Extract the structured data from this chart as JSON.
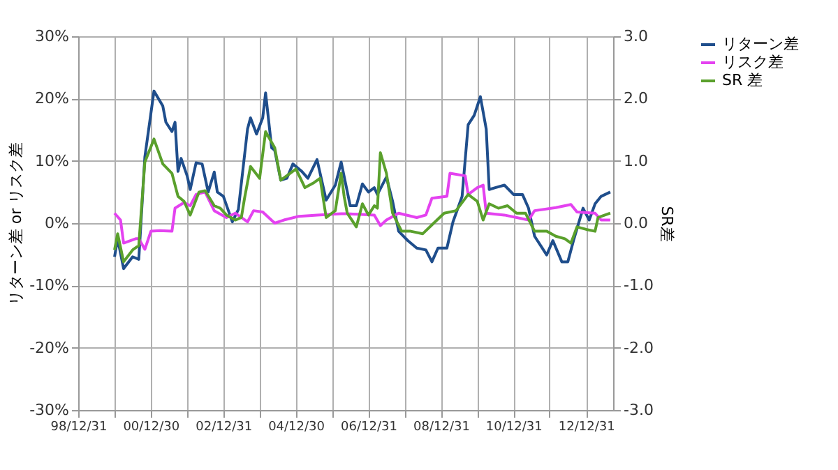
{
  "chart_data": {
    "type": "line",
    "ylabel": "リターン差 or リスク差",
    "y2label": "SR差",
    "xlim": [
      "1998-12-31",
      "2013-09-30"
    ],
    "xticks": [
      {
        "value": "1998-12-31",
        "label": "98/12/31"
      },
      {
        "value": "1999-12-31",
        "label": null
      },
      {
        "value": "2000-12-30",
        "label": "00/12/30"
      },
      {
        "value": "2001-12-31",
        "label": null
      },
      {
        "value": "2002-12-31",
        "label": "02/12/31"
      },
      {
        "value": "2003-12-31",
        "label": null
      },
      {
        "value": "2004-12-30",
        "label": "04/12/30"
      },
      {
        "value": "2005-12-30",
        "label": null
      },
      {
        "value": "2006-12-31",
        "label": "06/12/31"
      },
      {
        "value": "2007-12-31",
        "label": null
      },
      {
        "value": "2008-12-31",
        "label": "08/12/31"
      },
      {
        "value": "2009-12-31",
        "label": null
      },
      {
        "value": "2010-12-31",
        "label": "10/12/31"
      },
      {
        "value": "2011-12-30",
        "label": null
      },
      {
        "value": "2012-12-31",
        "label": "12/12/31"
      }
    ],
    "ylim": [
      -30,
      30
    ],
    "yticks": [
      {
        "value": -30,
        "label": "-30%"
      },
      {
        "value": -20,
        "label": "-20%"
      },
      {
        "value": -10,
        "label": "-10%"
      },
      {
        "value": 0,
        "label": "0%"
      },
      {
        "value": 10,
        "label": "10%"
      },
      {
        "value": 20,
        "label": "20%"
      },
      {
        "value": 30,
        "label": "30%"
      }
    ],
    "y2lim": [
      -3,
      3
    ],
    "y2ticks": [
      {
        "value": -3,
        "label": "-3.0"
      },
      {
        "value": -2,
        "label": "-2.0"
      },
      {
        "value": -1,
        "label": "-1.0"
      },
      {
        "value": 0,
        "label": "0.0"
      },
      {
        "value": 1,
        "label": "1.0"
      },
      {
        "value": 2,
        "label": "2.0"
      },
      {
        "value": 3,
        "label": "3.0"
      }
    ],
    "grid": true,
    "legend": "right",
    "marker": "none",
    "line_style": "solid",
    "series": [
      {
        "name": "リターン差",
        "color": "#1f4e8c",
        "x": [
          "2000-01",
          "2000-02",
          "2000-04",
          "2000-07",
          "2000-09",
          "2000-11",
          "2001-02",
          "2001-05",
          "2001-06",
          "2001-08",
          "2001-09",
          "2001-10",
          "2001-11",
          "2002-01",
          "2002-02",
          "2002-04",
          "2002-06",
          "2002-08",
          "2002-10",
          "2002-11",
          "2003-01",
          "2003-04",
          "2003-06",
          "2003-09",
          "2003-10",
          "2003-12",
          "2004-02",
          "2004-03",
          "2004-05",
          "2004-06",
          "2004-08",
          "2004-10",
          "2004-12",
          "2005-03",
          "2005-05",
          "2005-08",
          "2005-11",
          "2006-02",
          "2006-04",
          "2006-07",
          "2006-09",
          "2006-11",
          "2007-01",
          "2007-03",
          "2007-04",
          "2007-07",
          "2007-09",
          "2007-11",
          "2008-02",
          "2008-05",
          "2008-08",
          "2008-10",
          "2008-12",
          "2009-03",
          "2009-05",
          "2009-08",
          "2009-10",
          "2009-12",
          "2010-02",
          "2010-04",
          "2010-05",
          "2010-07",
          "2010-10",
          "2011-01",
          "2011-04",
          "2011-06",
          "2011-08",
          "2011-12",
          "2012-02",
          "2012-05",
          "2012-07",
          "2012-09",
          "2012-12",
          "2013-02",
          "2013-04",
          "2013-06",
          "2013-09"
        ],
        "values": [
          -5.4,
          -2.5,
          -7.3,
          -5.4,
          -5.8,
          10.6,
          21.2,
          18.8,
          16.2,
          14.7,
          16.2,
          8.3,
          10.4,
          7.6,
          5.4,
          9.7,
          9.5,
          5.0,
          8.2,
          5.0,
          4.3,
          0.2,
          2.2,
          15.1,
          16.9,
          14.3,
          16.9,
          20.9,
          12.1,
          11.7,
          6.9,
          7.2,
          9.5,
          8.3,
          7.2,
          10.2,
          3.7,
          6.1,
          9.8,
          2.8,
          2.8,
          6.3,
          5.0,
          5.7,
          4.6,
          7.4,
          3.5,
          -1.3,
          -2.8,
          -4.0,
          -4.3,
          -6.2,
          -4.0,
          -4.0,
          0.2,
          4.3,
          15.8,
          17.3,
          20.3,
          15.1,
          5.4,
          5.7,
          6.1,
          4.6,
          4.6,
          2.4,
          -2.1,
          -5.1,
          -2.8,
          -6.2,
          -6.2,
          -2.5,
          2.4,
          0.5,
          3.1,
          4.3,
          5.0
        ]
      },
      {
        "name": "リスク差",
        "color": "#e442f0",
        "x": [
          "2000-01",
          "2000-03",
          "2000-04",
          "2000-08",
          "2000-09",
          "2000-11",
          "2001-01",
          "2001-04",
          "2001-08",
          "2001-09",
          "2001-12",
          "2002-02",
          "2002-04",
          "2002-07",
          "2002-10",
          "2003-02",
          "2003-05",
          "2003-09",
          "2003-11",
          "2004-02",
          "2004-06",
          "2004-09",
          "2005-02",
          "2005-08",
          "2006-04",
          "2006-06",
          "2007-03",
          "2007-05",
          "2007-07",
          "2007-11",
          "2008-05",
          "2008-08",
          "2008-10",
          "2009-03",
          "2009-04",
          "2009-09",
          "2009-10",
          "2010-01",
          "2010-03",
          "2010-04",
          "2010-10",
          "2011-06",
          "2011-08",
          "2012-03",
          "2012-08",
          "2012-10",
          "2013-04",
          "2013-06",
          "2013-09"
        ],
        "values": [
          1.6,
          0.5,
          -3.2,
          -2.5,
          -2.5,
          -4.2,
          -1.3,
          -1.2,
          -1.3,
          2.4,
          3.3,
          2.8,
          4.6,
          5.0,
          2.0,
          0.9,
          1.6,
          0.2,
          2.0,
          1.8,
          0.0,
          0.5,
          1.1,
          1.3,
          1.5,
          1.5,
          1.3,
          -0.4,
          0.5,
          1.6,
          0.9,
          1.3,
          4.0,
          4.3,
          8.0,
          7.6,
          4.6,
          5.7,
          6.1,
          1.6,
          1.3,
          0.5,
          2.0,
          2.5,
          3.0,
          1.8,
          1.6,
          0.5,
          0.5
        ]
      },
      {
        "name": "SR 差",
        "color": "#5aa02c",
        "axis": "y2",
        "x": [
          "2000-01",
          "2000-02",
          "2000-04",
          "2000-07",
          "2000-09",
          "2000-11",
          "2001-02",
          "2001-05",
          "2001-08",
          "2001-10",
          "2001-12",
          "2002-02",
          "2002-05",
          "2002-07",
          "2002-10",
          "2002-12",
          "2003-02",
          "2003-05",
          "2003-07",
          "2003-08",
          "2003-10",
          "2004-01",
          "2004-03",
          "2004-06",
          "2004-08",
          "2005-01",
          "2005-04",
          "2005-07",
          "2005-09",
          "2005-11",
          "2006-02",
          "2006-04",
          "2006-05",
          "2006-06",
          "2006-09",
          "2006-11",
          "2007-01",
          "2007-03",
          "2007-04",
          "2007-05",
          "2007-07",
          "2007-09",
          "2007-12",
          "2008-03",
          "2008-07",
          "2008-11",
          "2009-02",
          "2009-06",
          "2009-10",
          "2010-01",
          "2010-03",
          "2010-05",
          "2010-08",
          "2010-11",
          "2011-02",
          "2011-05",
          "2011-08",
          "2011-12",
          "2012-03",
          "2012-06",
          "2012-08",
          "2012-10",
          "2013-01",
          "2013-04",
          "2013-05",
          "2013-09"
        ],
        "values": [
          -0.43,
          -0.17,
          -0.62,
          -0.43,
          -0.36,
          0.98,
          1.35,
          0.95,
          0.8,
          0.43,
          0.35,
          0.13,
          0.5,
          0.52,
          0.28,
          0.24,
          0.13,
          0.05,
          0.09,
          0.39,
          0.91,
          0.72,
          1.47,
          1.21,
          0.69,
          0.87,
          0.57,
          0.65,
          0.72,
          0.09,
          0.2,
          0.8,
          0.43,
          0.16,
          -0.06,
          0.31,
          0.13,
          0.28,
          0.24,
          1.13,
          0.8,
          0.16,
          -0.13,
          -0.13,
          -0.17,
          0.02,
          0.16,
          0.2,
          0.46,
          0.35,
          0.05,
          0.31,
          0.24,
          0.28,
          0.16,
          0.16,
          -0.13,
          -0.13,
          -0.21,
          -0.25,
          -0.32,
          -0.06,
          -0.1,
          -0.13,
          0.09,
          0.16
        ]
      }
    ]
  }
}
